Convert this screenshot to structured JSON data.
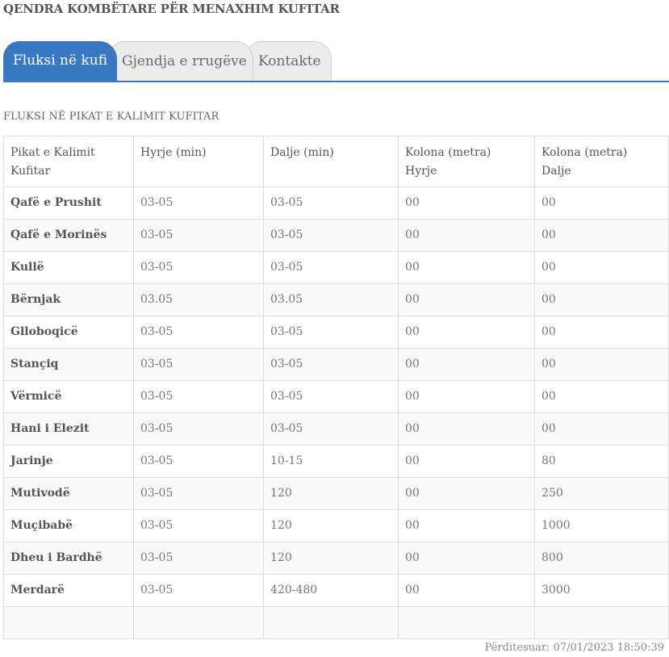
{
  "header": {
    "title": "QENDRA KOMBËTARE PËR MENAXHIM KUFITAR"
  },
  "tabs": [
    {
      "label": "Fluksi në kufi"
    },
    {
      "label": "Gjendja e rrugëve"
    },
    {
      "label": "Kontakte"
    }
  ],
  "section": {
    "title": "FLUKSI NË PIKAT E KALIMIT KUFITAR"
  },
  "table": {
    "headers": [
      {
        "line1": "Pikat e Kalimit",
        "line2": "Kufitar"
      },
      {
        "line1": "Hyrje (min)",
        "line2": ""
      },
      {
        "line1": "Dalje (min)",
        "line2": ""
      },
      {
        "line1": "Kolona (metra)",
        "line2": "Hyrje"
      },
      {
        "line1": "Kolona (metra)",
        "line2": "Dalje"
      }
    ],
    "rows": [
      [
        "Qafë e Prushit",
        "03-05",
        "03-05",
        "00",
        "00"
      ],
      [
        "Qafë e Morinës",
        "03-05",
        "03-05",
        "00",
        "00"
      ],
      [
        "Kullë",
        "03-05",
        "03-05",
        "00",
        "00"
      ],
      [
        "Bërnjak",
        "03.05",
        "03.05",
        "00",
        "00"
      ],
      [
        "Glloboqicë",
        "03-05",
        "03-05",
        "00",
        "00"
      ],
      [
        "Stançiq",
        "03-05",
        "03-05",
        "00",
        "00"
      ],
      [
        "Vërmicë",
        "03-05",
        "03-05",
        "00",
        "00"
      ],
      [
        "Hani i Elezit",
        "03-05",
        "03-05",
        "00",
        "00"
      ],
      [
        "Jarinje",
        "03-05",
        "10-15",
        "00",
        "80"
      ],
      [
        "Mutivodë",
        "03-05",
        "120",
        "00",
        "250"
      ],
      [
        "Muçibabë",
        "03-05",
        "120",
        "00",
        "1000"
      ],
      [
        "Dheu i Bardhë",
        "03-05",
        "120",
        "00",
        "800"
      ],
      [
        "Merdarë",
        "03-05",
        "420-480",
        "00",
        "3000"
      ]
    ]
  },
  "footer": {
    "updated": "Përditesuar: 07/01/2023 18:50:39"
  },
  "colors": {
    "accent": "#3a78c2",
    "tab_inactive": "#ececec",
    "row_stripe": "#f9f9f9",
    "border": "#dddddd"
  }
}
